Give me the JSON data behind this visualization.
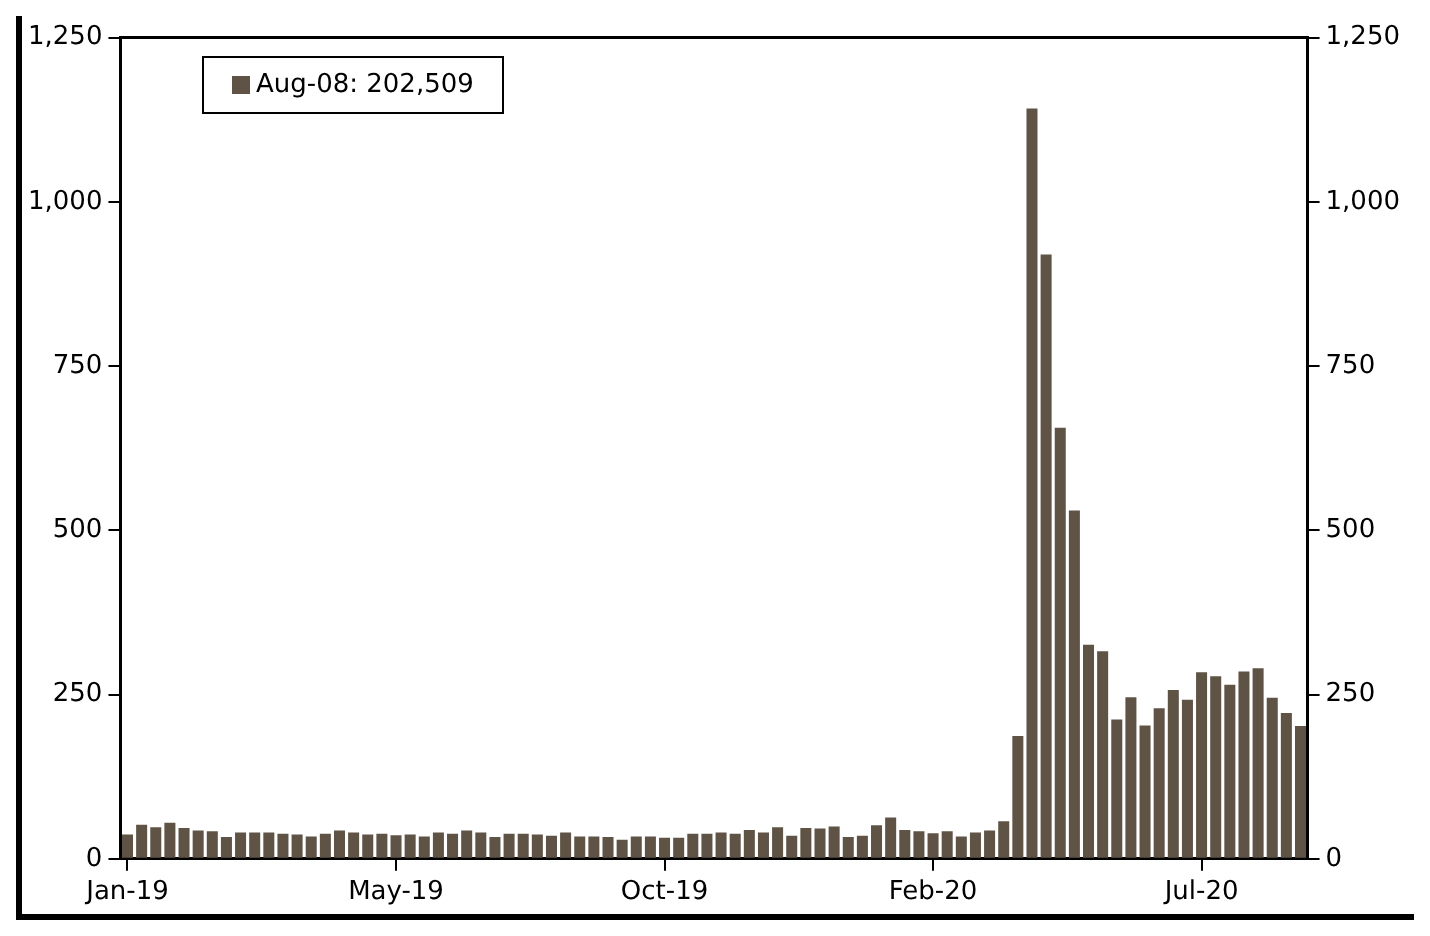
{
  "chart_data": {
    "type": "bar",
    "categories": [
      "Jan-19",
      null,
      null,
      null,
      null,
      null,
      null,
      null,
      null,
      null,
      null,
      null,
      null,
      null,
      null,
      null,
      null,
      null,
      null,
      "May-19",
      null,
      null,
      null,
      null,
      null,
      null,
      null,
      null,
      null,
      null,
      null,
      null,
      null,
      null,
      null,
      null,
      null,
      null,
      "Oct-19",
      null,
      null,
      null,
      null,
      null,
      null,
      null,
      null,
      null,
      null,
      null,
      null,
      null,
      null,
      null,
      null,
      null,
      null,
      "Feb-20",
      null,
      null,
      null,
      null,
      null,
      null,
      null,
      null,
      null,
      null,
      null,
      null,
      null,
      null,
      null,
      null,
      null,
      null,
      "Jul-20",
      null,
      null,
      null,
      null,
      null,
      null,
      null
    ],
    "series": [
      {
        "name": "Aug-08: 202,509",
        "color": "#5f5346",
        "values": [
          37,
          52,
          48,
          55,
          47,
          43,
          42,
          33,
          40,
          40,
          40,
          38,
          37,
          34,
          38,
          43,
          40,
          37,
          38,
          36,
          37,
          34,
          40,
          38,
          43,
          40,
          33,
          38,
          38,
          37,
          35,
          40,
          34,
          34,
          33,
          29,
          34,
          34,
          32,
          32,
          38,
          38,
          40,
          38,
          44,
          40,
          48,
          35,
          47,
          46,
          49,
          33,
          35,
          51,
          63,
          44,
          42,
          39,
          42,
          34,
          40,
          43,
          57,
          187,
          1142,
          920,
          656,
          530,
          326,
          316,
          212,
          246,
          203,
          229,
          257,
          242,
          284,
          278,
          265,
          285,
          290,
          245,
          222,
          202
        ]
      }
    ],
    "ylim": [
      0,
      1250
    ],
    "yticks": [
      0,
      {
        "value": 250,
        "label": "250"
      },
      {
        "value": 500,
        "label": "500"
      },
      {
        "value": 750,
        "label": "750"
      },
      {
        "value": 1000,
        "label": "1,000"
      },
      {
        "value": 1250,
        "label": "1,250"
      }
    ],
    "y2lim": [
      0,
      1250
    ],
    "y2ticks": [
      0,
      {
        "value": 250,
        "label": "250"
      },
      {
        "value": 500,
        "label": "500"
      },
      {
        "value": 750,
        "label": "750"
      },
      {
        "value": 1000,
        "label": "1,000"
      },
      {
        "value": 1250,
        "label": "1,250"
      }
    ],
    "grid": false,
    "legend": "top left"
  }
}
